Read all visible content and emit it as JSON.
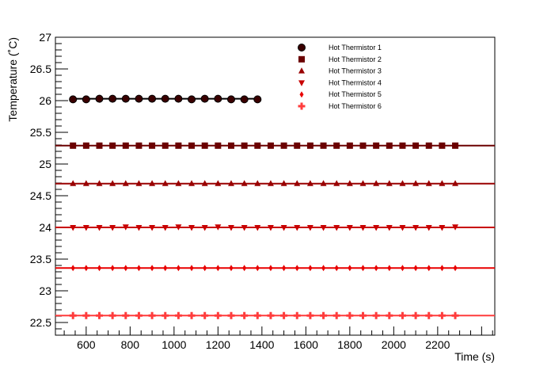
{
  "chart_data": {
    "type": "scatter",
    "title": "",
    "xlabel": "Time (s)",
    "ylabel": "Temperature (˚C)",
    "xlim": [
      460,
      2460
    ],
    "ylim": [
      22.3,
      27.0
    ],
    "xticks": [
      600,
      800,
      1000,
      1200,
      1400,
      1600,
      1800,
      2000,
      2200
    ],
    "yticks": [
      22.5,
      23,
      23.5,
      24,
      24.5,
      25,
      25.5,
      26,
      26.5,
      27
    ],
    "grid": false,
    "legend_position": "top-right",
    "series": [
      {
        "name": "Hot Thermistor 1",
        "marker": "circle",
        "color": "#3a0000",
        "x": [
          540,
          600,
          660,
          720,
          780,
          840,
          900,
          960,
          1020,
          1080,
          1140,
          1200,
          1260,
          1320,
          1380
        ],
        "y": [
          26.02,
          26.02,
          26.03,
          26.03,
          26.03,
          26.03,
          26.03,
          26.03,
          26.03,
          26.02,
          26.03,
          26.03,
          26.02,
          26.02,
          26.02
        ],
        "fit_line": {
          "x": [
            540,
            1390
          ],
          "y": 26.03
        }
      },
      {
        "name": "Hot Thermistor 2",
        "marker": "square",
        "color": "#6b0000",
        "x": [
          540,
          600,
          660,
          720,
          780,
          840,
          900,
          960,
          1020,
          1080,
          1140,
          1200,
          1260,
          1320,
          1380,
          1440,
          1500,
          1560,
          1620,
          1680,
          1740,
          1800,
          1860,
          1920,
          1980,
          2040,
          2100,
          2160,
          2220,
          2280
        ],
        "y": [
          25.29,
          25.29,
          25.29,
          25.29,
          25.29,
          25.29,
          25.29,
          25.29,
          25.29,
          25.29,
          25.29,
          25.29,
          25.29,
          25.29,
          25.29,
          25.29,
          25.29,
          25.29,
          25.29,
          25.29,
          25.29,
          25.29,
          25.29,
          25.29,
          25.29,
          25.29,
          25.29,
          25.29,
          25.29,
          25.29
        ],
        "fit_line": {
          "x": [
            460,
            2460
          ],
          "y": 25.29
        }
      },
      {
        "name": "Hot Thermistor 3",
        "marker": "triangle-up",
        "color": "#990000",
        "x": [
          540,
          600,
          660,
          720,
          780,
          840,
          900,
          960,
          1020,
          1080,
          1140,
          1200,
          1260,
          1320,
          1380,
          1440,
          1500,
          1560,
          1620,
          1680,
          1740,
          1800,
          1860,
          1920,
          1980,
          2040,
          2100,
          2160,
          2220,
          2280
        ],
        "y": [
          24.69,
          24.69,
          24.69,
          24.69,
          24.69,
          24.69,
          24.69,
          24.69,
          24.69,
          24.69,
          24.69,
          24.69,
          24.69,
          24.69,
          24.69,
          24.69,
          24.69,
          24.69,
          24.69,
          24.69,
          24.69,
          24.69,
          24.69,
          24.69,
          24.69,
          24.69,
          24.69,
          24.69,
          24.69,
          24.69
        ],
        "fit_line": {
          "x": [
            460,
            2460
          ],
          "y": 24.69
        }
      },
      {
        "name": "Hot Thermistor 4",
        "marker": "triangle-down",
        "color": "#c80000",
        "x": [
          540,
          600,
          660,
          720,
          780,
          840,
          900,
          960,
          1020,
          1080,
          1140,
          1200,
          1260,
          1320,
          1380,
          1440,
          1500,
          1560,
          1620,
          1680,
          1740,
          1800,
          1860,
          1920,
          1980,
          2040,
          2100,
          2160,
          2220,
          2280
        ],
        "y": [
          24.0,
          24.0,
          24.0,
          24.0,
          24.01,
          24.0,
          24.0,
          24.0,
          24.01,
          24.0,
          24.0,
          24.01,
          24.0,
          24.0,
          24.0,
          24.0,
          24.0,
          24.0,
          24.0,
          24.0,
          24.0,
          24.0,
          24.0,
          24.0,
          24.0,
          24.0,
          24.0,
          24.0,
          24.0,
          24.01
        ],
        "fit_line": {
          "x": [
            460,
            2460
          ],
          "y": 24.0
        }
      },
      {
        "name": "Hot Thermistor 5",
        "marker": "diamond",
        "color": "#e80000",
        "x": [
          540,
          600,
          660,
          720,
          780,
          840,
          900,
          960,
          1020,
          1080,
          1140,
          1200,
          1260,
          1320,
          1380,
          1440,
          1500,
          1560,
          1620,
          1680,
          1740,
          1800,
          1860,
          1920,
          1980,
          2040,
          2100,
          2160,
          2220,
          2280
        ],
        "y": [
          23.36,
          23.36,
          23.36,
          23.36,
          23.36,
          23.36,
          23.36,
          23.36,
          23.36,
          23.36,
          23.36,
          23.36,
          23.36,
          23.36,
          23.36,
          23.36,
          23.36,
          23.36,
          23.36,
          23.36,
          23.36,
          23.36,
          23.36,
          23.36,
          23.36,
          23.36,
          23.36,
          23.36,
          23.36,
          23.36
        ],
        "fit_line": {
          "x": [
            460,
            2460
          ],
          "y": 23.36
        }
      },
      {
        "name": "Hot Thermistor 6",
        "marker": "cross",
        "color": "#ff3c3c",
        "x": [
          540,
          600,
          660,
          720,
          780,
          840,
          900,
          960,
          1020,
          1080,
          1140,
          1200,
          1260,
          1320,
          1380,
          1440,
          1500,
          1560,
          1620,
          1680,
          1740,
          1800,
          1860,
          1920,
          1980,
          2040,
          2100,
          2160,
          2220,
          2280
        ],
        "y": [
          22.61,
          22.61,
          22.61,
          22.61,
          22.61,
          22.61,
          22.61,
          22.61,
          22.61,
          22.61,
          22.61,
          22.61,
          22.61,
          22.61,
          22.61,
          22.61,
          22.61,
          22.61,
          22.61,
          22.61,
          22.61,
          22.61,
          22.61,
          22.61,
          22.61,
          22.61,
          22.61,
          22.61,
          22.61,
          22.61
        ],
        "fit_line": {
          "x": [
            460,
            2460
          ],
          "y": 22.61
        }
      }
    ]
  }
}
